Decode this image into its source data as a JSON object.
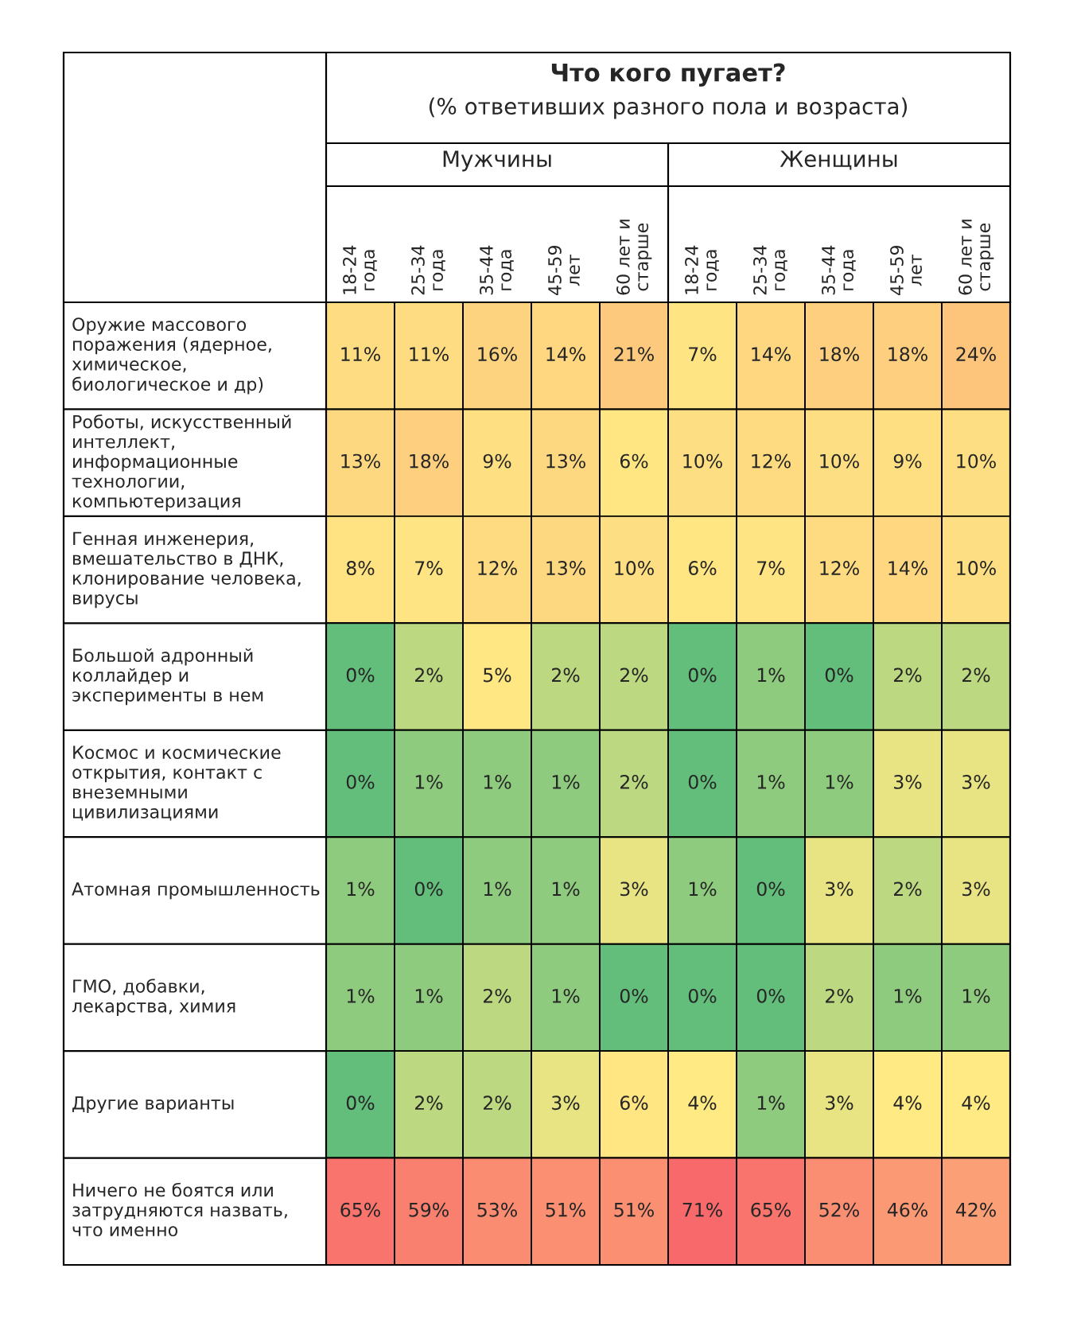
{
  "chart_data": {
    "type": "heatmap",
    "title": "Что кого пугает?",
    "subtitle": "(% ответивших разного пола и возраста)",
    "annotations": [
      "Мужчины",
      "Женщины"
    ],
    "categories": [
      "18-24 года",
      "25-34 года",
      "35-44 года",
      "45-59 лет",
      "60 лет и старше",
      "18-24 года",
      "25-34 года",
      "35-44 года",
      "45-59 лет",
      "60 лет и старше"
    ],
    "y_categories": [
      "Оружие массового поражения (ядерное, химическое, биологическое и др)",
      "Роботы, искусственный интеллект, информационные технологии, компьютеризация",
      "Генная инженерия, вмешательство в ДНК, клонирование человека, вирусы",
      "Большой адронный коллайдер и эксперименты в нем",
      "Космос и космические открытия, контакт с внеземными цивилизациями",
      "Атомная промышленность",
      "ГМО, добавки, лекарства, химия",
      "Другие варианты",
      "Ничего не боятся или затрудняются назвать, что именно"
    ],
    "cells": [
      [
        11,
        11,
        16,
        14,
        21,
        7,
        14,
        18,
        18,
        24
      ],
      [
        13,
        18,
        9,
        13,
        6,
        10,
        12,
        10,
        9,
        10
      ],
      [
        8,
        7,
        12,
        13,
        10,
        6,
        7,
        12,
        14,
        10
      ],
      [
        0,
        2,
        5,
        2,
        2,
        0,
        1,
        0,
        2,
        2
      ],
      [
        0,
        1,
        1,
        1,
        2,
        0,
        1,
        1,
        3,
        3
      ],
      [
        1,
        0,
        1,
        1,
        3,
        1,
        0,
        3,
        2,
        3
      ],
      [
        1,
        1,
        2,
        1,
        0,
        0,
        0,
        2,
        1,
        1
      ],
      [
        0,
        2,
        2,
        3,
        6,
        4,
        1,
        3,
        4,
        4
      ],
      [
        65,
        59,
        53,
        51,
        51,
        71,
        65,
        52,
        46,
        42
      ]
    ],
    "cell_labels": [
      [
        "11%",
        "11%",
        "16%",
        "14%",
        "21%",
        "7%",
        "14%",
        "18%",
        "18%",
        "24%"
      ],
      [
        "13%",
        "18%",
        "9%",
        "13%",
        "6%",
        "10%",
        "12%",
        "10%",
        "9%",
        "10%"
      ],
      [
        "8%",
        "7%",
        "12%",
        "13%",
        "10%",
        "6%",
        "7%",
        "12%",
        "14%",
        "10%"
      ],
      [
        "0%",
        "2%",
        "5%",
        "2%",
        "2%",
        "0%",
        "1%",
        "0%",
        "2%",
        "2%"
      ],
      [
        "0%",
        "1%",
        "1%",
        "1%",
        "2%",
        "0%",
        "1%",
        "1%",
        "3%",
        "3%"
      ],
      [
        "1%",
        "0%",
        "1%",
        "1%",
        "3%",
        "1%",
        "0%",
        "3%",
        "2%",
        "3%"
      ],
      [
        "1%",
        "1%",
        "2%",
        "1%",
        "0%",
        "0%",
        "0%",
        "2%",
        "1%",
        "1%"
      ],
      [
        "0%",
        "2%",
        "2%",
        "3%",
        "6%",
        "4%",
        "1%",
        "3%",
        "4%",
        "4%"
      ],
      [
        "65%",
        "59%",
        "53%",
        "51%",
        "51%",
        "71%",
        "65%",
        "52%",
        "46%",
        "42%"
      ]
    ]
  }
}
